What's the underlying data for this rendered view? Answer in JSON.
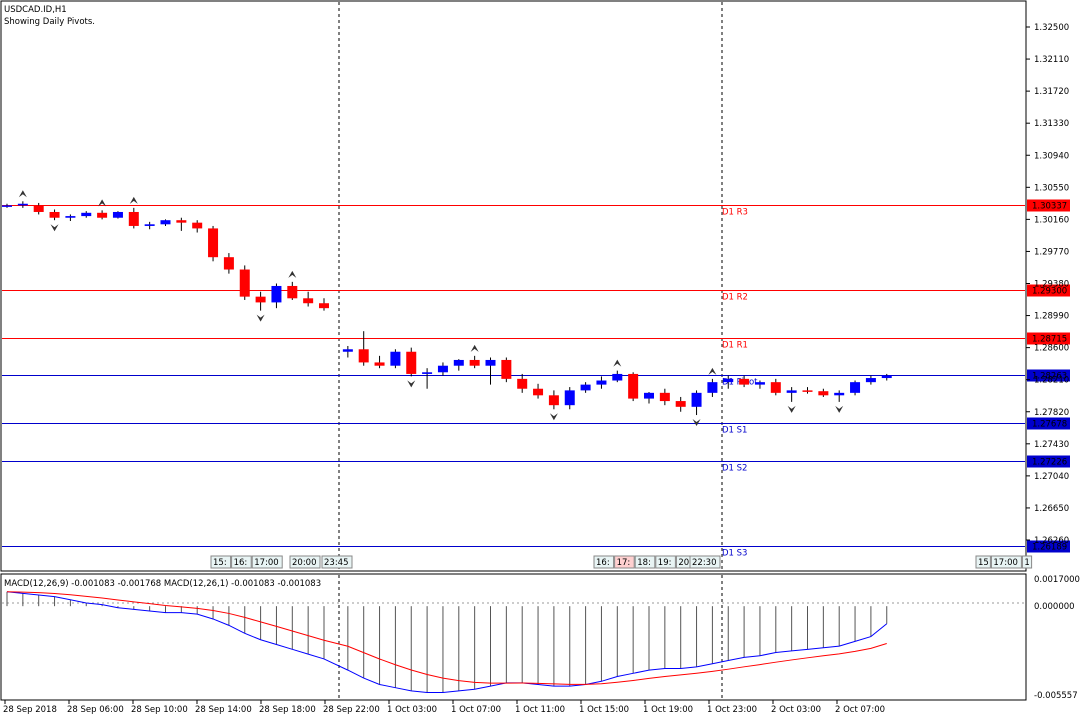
{
  "header": {
    "symbol_title": "USDCAD.ID,H1",
    "subtitle": "Showing Daily Pivots."
  },
  "colors": {
    "bull": "#0000ff",
    "bear": "#ff0000",
    "pivot_resistance": "#ff0000",
    "pivot_support": "#0000cc",
    "grid_vline": "#000000",
    "macd_line": "#0000ff",
    "signal_line": "#ff0000"
  },
  "price_axis": {
    "ticks": [
      "1.32500",
      "1.32110",
      "1.31720",
      "1.31330",
      "1.30940",
      "1.30550",
      "1.30160",
      "1.29770",
      "1.29380",
      "1.28990",
      "1.28600",
      "1.28210",
      "1.27820",
      "1.27430",
      "1.27040",
      "1.26650",
      "1.26260"
    ],
    "range": [
      1.2612,
      1.3268
    ]
  },
  "pivots": [
    {
      "label": "D1 R3",
      "value": "1.30337",
      "type": "resistance"
    },
    {
      "label": "D1 R2",
      "value": "1.29300",
      "type": "resistance"
    },
    {
      "label": "D1 R1",
      "value": "1.28715",
      "type": "resistance"
    },
    {
      "label": "D1 Pivot",
      "value": "1.28263",
      "type": "support"
    },
    {
      "label": "D1 S1",
      "value": "1.27678",
      "type": "support"
    },
    {
      "label": "D1 S2",
      "value": "1.27226",
      "type": "support"
    },
    {
      "label": "D1 S3",
      "value": "1.26189",
      "type": "support"
    }
  ],
  "session_labels": {
    "group1": [
      "15:",
      "16:",
      "17:00"
    ],
    "group2": [
      "20:00"
    ],
    "group3": [
      "23:45"
    ],
    "group4": [
      "16:",
      "17:",
      "18:",
      "19:",
      "20:00"
    ],
    "group5": [
      "22:30"
    ],
    "group6": [
      "15",
      "17:00",
      "1"
    ]
  },
  "macd": {
    "title": "MACD(12,26,9) -0.001083 -0.001768 MACD(12,26,1) -0.001083 -0.001083",
    "ticks": [
      "0.0017000",
      "0.000000",
      "-0.005557"
    ],
    "range": [
      -0.005557,
      0.0017
    ]
  },
  "time_axis": {
    "labels": [
      "28 Sep 2018",
      "28 Sep 06:00",
      "28 Sep 10:00",
      "28 Sep 14:00",
      "28 Sep 18:00",
      "28 Sep 22:00",
      "1 Oct 03:00",
      "1 Oct 07:00",
      "1 Oct 11:00",
      "1 Oct 15:00",
      "1 Oct 19:00",
      "1 Oct 23:00",
      "2 Oct 03:00",
      "2 Oct 07:00"
    ]
  },
  "chart_data": {
    "type": "candlestick",
    "title": "USDCAD.ID,H1",
    "candles": [
      [
        1.3032,
        1.3035,
        1.303,
        1.3033
      ],
      [
        1.3033,
        1.3038,
        1.303,
        1.3035
      ],
      [
        1.3033,
        1.3036,
        1.3022,
        1.3025
      ],
      [
        1.3025,
        1.3028,
        1.3015,
        1.3018
      ],
      [
        1.3018,
        1.3022,
        1.3014,
        1.302
      ],
      [
        1.302,
        1.3026,
        1.3018,
        1.3024
      ],
      [
        1.3024,
        1.3027,
        1.3016,
        1.3018
      ],
      [
        1.3018,
        1.3026,
        1.3017,
        1.3025
      ],
      [
        1.3025,
        1.303,
        1.3005,
        1.3008
      ],
      [
        1.3008,
        1.3013,
        1.3004,
        1.301
      ],
      [
        1.301,
        1.3016,
        1.3008,
        1.3015
      ],
      [
        1.3015,
        1.3018,
        1.3002,
        1.3012
      ],
      [
        1.3012,
        1.3015,
        1.3,
        1.3005
      ],
      [
        1.3005,
        1.3008,
        1.2965,
        1.297
      ],
      [
        1.297,
        1.2975,
        1.295,
        1.2955
      ],
      [
        1.2955,
        1.296,
        1.2918,
        1.2922
      ],
      [
        1.2922,
        1.2928,
        1.2905,
        1.2915
      ],
      [
        1.2915,
        1.2938,
        1.2908,
        1.2935
      ],
      [
        1.2935,
        1.294,
        1.2918,
        1.292
      ],
      [
        1.292,
        1.2928,
        1.291,
        1.2914
      ],
      [
        1.2914,
        1.292,
        1.2905,
        1.2908
      ],
      [
        1.2855,
        1.2862,
        1.2848,
        1.2858
      ],
      [
        1.2858,
        1.288,
        1.2838,
        1.2842
      ],
      [
        1.2842,
        1.285,
        1.2835,
        1.2838
      ],
      [
        1.2838,
        1.2858,
        1.2835,
        1.2855
      ],
      [
        1.2855,
        1.286,
        1.2825,
        1.2828
      ],
      [
        1.2828,
        1.2835,
        1.281,
        1.283
      ],
      [
        1.283,
        1.2842,
        1.2826,
        1.2838
      ],
      [
        1.2838,
        1.2846,
        1.2832,
        1.2845
      ],
      [
        1.2845,
        1.285,
        1.2835,
        1.2838
      ],
      [
        1.2838,
        1.2848,
        1.2815,
        1.2845
      ],
      [
        1.2845,
        1.2848,
        1.2818,
        1.2822
      ],
      [
        1.2822,
        1.2828,
        1.2805,
        1.281
      ],
      [
        1.281,
        1.2816,
        1.2798,
        1.2802
      ],
      [
        1.2802,
        1.2808,
        1.2785,
        1.279
      ],
      [
        1.279,
        1.2812,
        1.2785,
        1.2808
      ],
      [
        1.2808,
        1.2818,
        1.2805,
        1.2815
      ],
      [
        1.2815,
        1.2825,
        1.281,
        1.282
      ],
      [
        1.282,
        1.2832,
        1.2818,
        1.2828
      ],
      [
        1.2828,
        1.283,
        1.2795,
        1.2798
      ],
      [
        1.2798,
        1.2806,
        1.2792,
        1.2805
      ],
      [
        1.2805,
        1.281,
        1.279,
        1.2795
      ],
      [
        1.2795,
        1.28,
        1.2782,
        1.2788
      ],
      [
        1.2788,
        1.2808,
        1.2778,
        1.2805
      ],
      [
        1.2805,
        1.2822,
        1.28,
        1.2818
      ],
      [
        1.2818,
        1.2826,
        1.281,
        1.2822
      ],
      [
        1.2822,
        1.2826,
        1.2812,
        1.2815
      ],
      [
        1.2815,
        1.282,
        1.281,
        1.2818
      ],
      [
        1.2818,
        1.2822,
        1.2802,
        1.2805
      ],
      [
        1.2805,
        1.2812,
        1.2794,
        1.2808
      ],
      [
        1.2808,
        1.2812,
        1.2804,
        1.2807
      ],
      [
        1.2807,
        1.281,
        1.28,
        1.2802
      ],
      [
        1.2802,
        1.2808,
        1.2794,
        1.2805
      ],
      [
        1.2805,
        1.282,
        1.2802,
        1.2818
      ],
      [
        1.2818,
        1.2826,
        1.2815,
        1.2823
      ],
      [
        1.2823,
        1.2828,
        1.282,
        1.2826
      ]
    ],
    "ylim": [
      1.2612,
      1.3268
    ]
  }
}
